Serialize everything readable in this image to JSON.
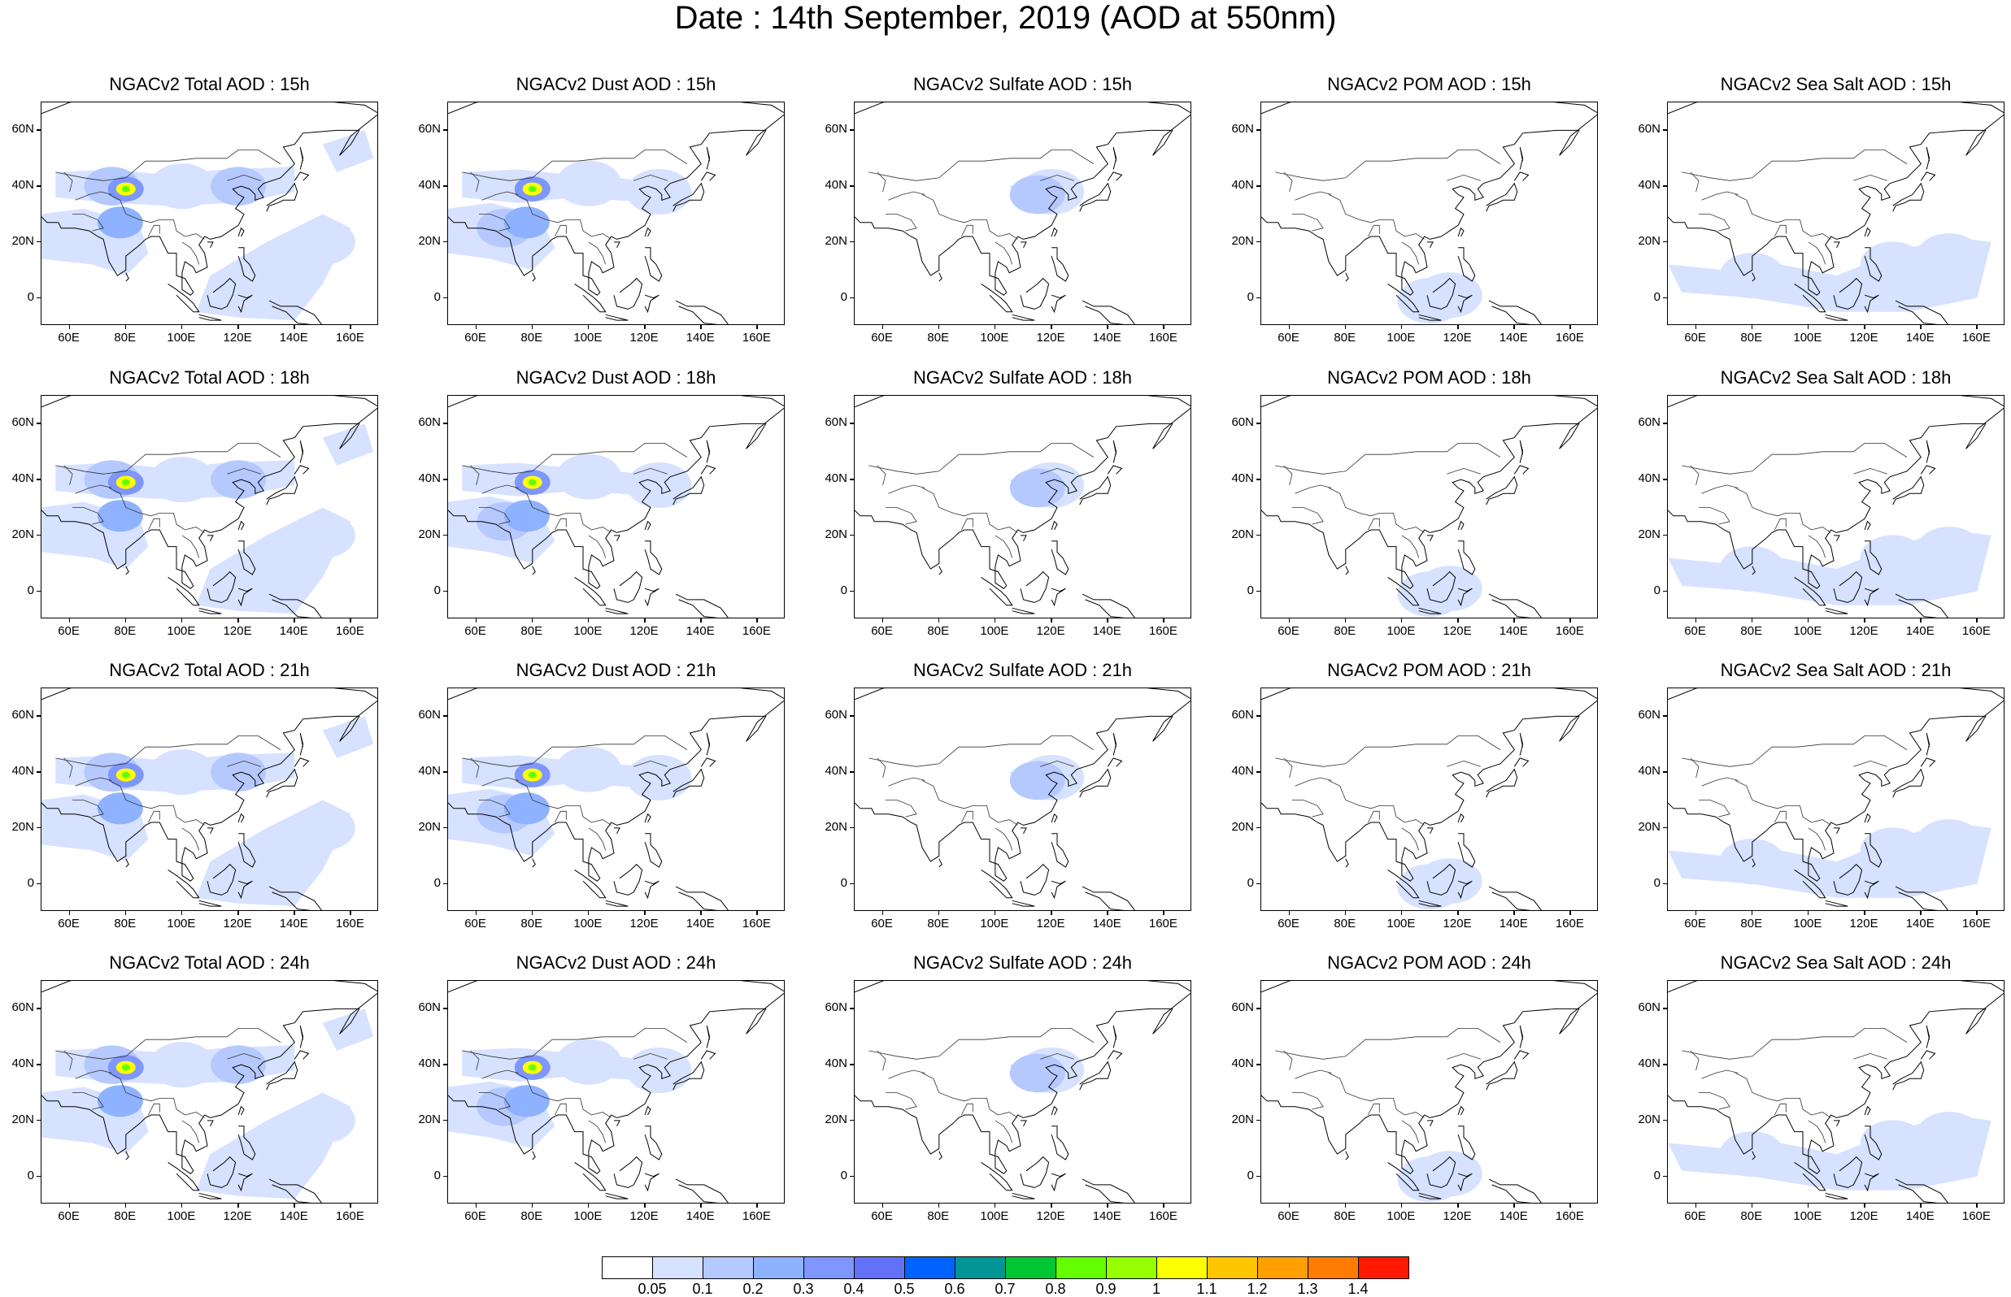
{
  "title": "Date : 14th September, 2019 (AOD at 550nm)",
  "panels": [
    {
      "title": "NGACv2 Total AOD : 15h",
      "species": "total"
    },
    {
      "title": "NGACv2 Dust AOD : 15h",
      "species": "dust"
    },
    {
      "title": "NGACv2 Sulfate AOD : 15h",
      "species": "sulfate"
    },
    {
      "title": "NGACv2 POM AOD : 15h",
      "species": "pom"
    },
    {
      "title": "NGACv2 Sea Salt AOD : 15h",
      "species": "seasalt"
    },
    {
      "title": "NGACv2 Total AOD : 18h",
      "species": "total"
    },
    {
      "title": "NGACv2 Dust AOD : 18h",
      "species": "dust"
    },
    {
      "title": "NGACv2 Sulfate AOD : 18h",
      "species": "sulfate"
    },
    {
      "title": "NGACv2 POM AOD : 18h",
      "species": "pom"
    },
    {
      "title": "NGACv2 Sea Salt AOD : 18h",
      "species": "seasalt"
    },
    {
      "title": "NGACv2 Total AOD : 21h",
      "species": "total"
    },
    {
      "title": "NGACv2 Dust AOD : 21h",
      "species": "dust"
    },
    {
      "title": "NGACv2 Sulfate AOD : 21h",
      "species": "sulfate"
    },
    {
      "title": "NGACv2 POM AOD : 21h",
      "species": "pom"
    },
    {
      "title": "NGACv2 Sea Salt AOD : 21h",
      "species": "seasalt"
    },
    {
      "title": "NGACv2 Total AOD : 24h",
      "species": "total"
    },
    {
      "title": "NGACv2 Dust AOD : 24h",
      "species": "dust"
    },
    {
      "title": "NGACv2 Sulfate AOD : 24h",
      "species": "sulfate"
    },
    {
      "title": "NGACv2 POM AOD : 24h",
      "species": "pom"
    },
    {
      "title": "NGACv2 Sea Salt  AOD : 24h",
      "species": "seasalt"
    }
  ],
  "axes": {
    "lon_range": [
      50,
      170
    ],
    "lat_range": [
      -10,
      70
    ],
    "xtick_values": [
      60,
      80,
      100,
      120,
      140,
      160
    ],
    "xtick_labels": [
      "60E",
      "80E",
      "100E",
      "120E",
      "140E",
      "160E"
    ],
    "ytick_values": [
      0,
      20,
      40,
      60
    ],
    "ytick_labels": [
      "0",
      "20N",
      "40N",
      "60N"
    ]
  },
  "colorbar": {
    "levels": [
      "0.05",
      "0.1",
      "0.2",
      "0.3",
      "0.4",
      "0.5",
      "0.6",
      "0.7",
      "0.8",
      "0.9",
      "1",
      "1.1",
      "1.2",
      "1.3",
      "1.4"
    ],
    "colors": [
      "#ffffff",
      "#d6e2ff",
      "#b5c9ff",
      "#8eb2ff",
      "#7f96ff",
      "#6370f8",
      "#0063ff",
      "#009696",
      "#00c633",
      "#63ff00",
      "#96ff00",
      "#ffff00",
      "#ffc600",
      "#ffa000",
      "#ff7c00",
      "#ff1900"
    ]
  },
  "chart_data": {
    "type": "heatmap",
    "x_range": [
      50,
      170
    ],
    "y_range": [
      -10,
      70
    ],
    "levels": [
      0.05,
      0.1,
      0.2,
      0.3,
      0.4,
      0.5,
      0.6,
      0.7,
      0.8,
      0.9,
      1,
      1.1,
      1.2,
      1.3,
      1.4
    ],
    "features": {
      "total": [
        {
          "lon": 80,
          "lat": 39,
          "level": 11,
          "note": "peak"
        },
        {
          "lon": 80,
          "lat": 39,
          "level": 4
        },
        {
          "lon": 78,
          "lat": 27,
          "level": 3
        },
        {
          "lon": 75,
          "lat": 40,
          "level": 2
        },
        {
          "lon": 100,
          "lat": 40,
          "level": 1
        },
        {
          "lon": 120,
          "lat": 40,
          "level": 2
        },
        {
          "lon": 70,
          "lat": 22,
          "level": 1
        },
        {
          "lon": 130,
          "lat": 8,
          "level": 1
        },
        {
          "lon": 150,
          "lat": 20,
          "level": 1
        }
      ],
      "dust": [
        {
          "lon": 80,
          "lat": 39,
          "level": 11,
          "note": "peak"
        },
        {
          "lon": 80,
          "lat": 39,
          "level": 4
        },
        {
          "lon": 78,
          "lat": 27,
          "level": 3
        },
        {
          "lon": 70,
          "lat": 25,
          "level": 2
        },
        {
          "lon": 100,
          "lat": 41,
          "level": 1
        },
        {
          "lon": 125,
          "lat": 38,
          "level": 1
        }
      ],
      "sulfate": [
        {
          "lon": 115,
          "lat": 37,
          "level": 2
        },
        {
          "lon": 120,
          "lat": 38,
          "level": 1
        }
      ],
      "pom": [
        {
          "lon": 110,
          "lat": -1,
          "level": 1
        },
        {
          "lon": 117,
          "lat": 1,
          "level": 1
        }
      ],
      "seasalt": [
        {
          "lon": 80,
          "lat": 8,
          "level": 1
        },
        {
          "lon": 130,
          "lat": 12,
          "level": 1
        },
        {
          "lon": 150,
          "lat": 15,
          "level": 1
        }
      ]
    }
  }
}
